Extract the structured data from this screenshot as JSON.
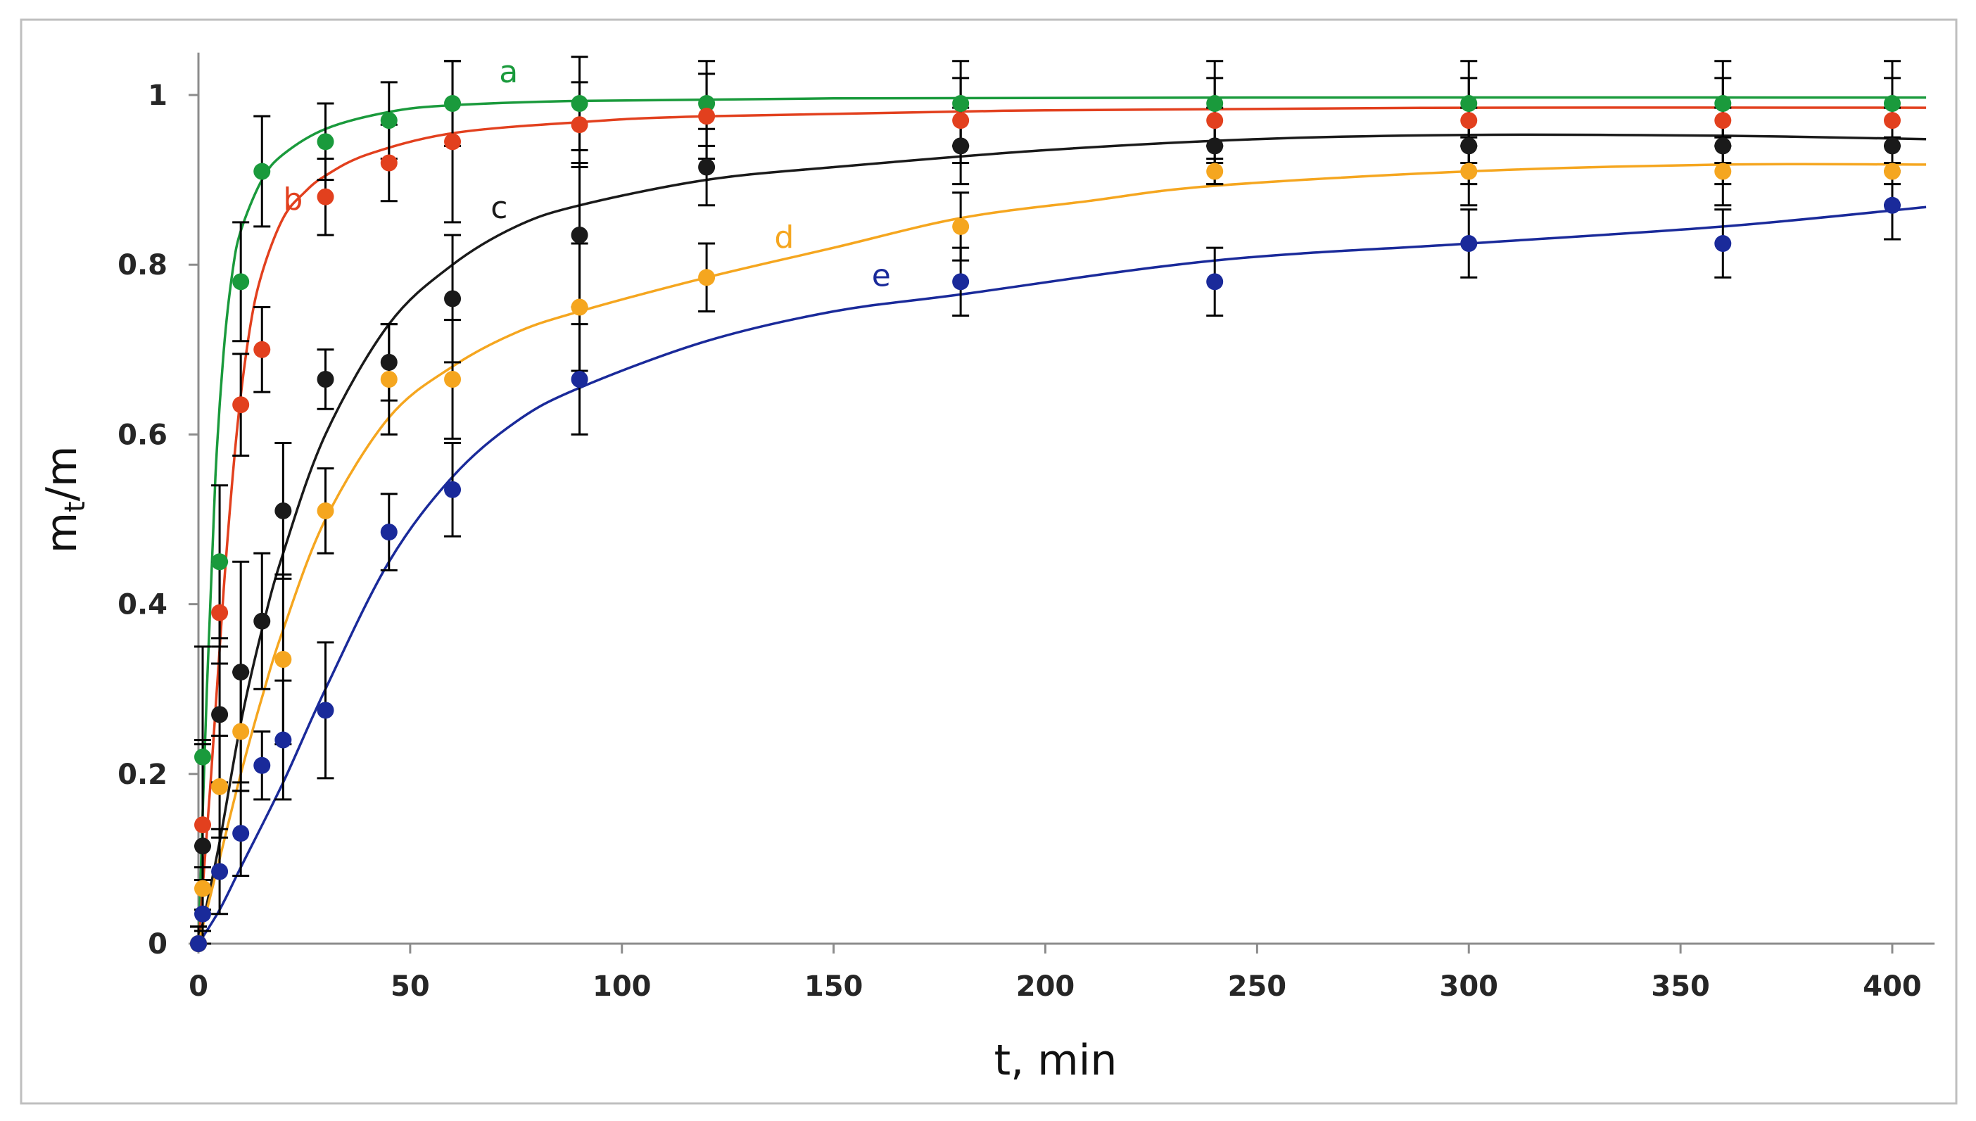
{
  "chart_data": {
    "type": "scatter",
    "title": "",
    "xlabel": "t, min",
    "ylabel_main": "m",
    "ylabel_sub": "t",
    "ylabel_tail": "/m",
    "xlim": [
      0,
      410
    ],
    "ylim": [
      0,
      1.05
    ],
    "grid": false,
    "x_ticks": [
      {
        "value": 0,
        "label": "0"
      },
      {
        "value": 50,
        "label": "50"
      },
      {
        "value": 100,
        "label": "100"
      },
      {
        "value": 150,
        "label": "150"
      },
      {
        "value": 200,
        "label": "200"
      },
      {
        "value": 250,
        "label": "250"
      },
      {
        "value": 300,
        "label": "300"
      },
      {
        "value": 350,
        "label": "350"
      },
      {
        "value": 400,
        "label": "400"
      }
    ],
    "y_ticks": [
      {
        "value": 0,
        "label": "0"
      },
      {
        "value": 0.2,
        "label": "0.2"
      },
      {
        "value": 0.4,
        "label": "0.4"
      },
      {
        "value": 0.6,
        "label": "0.6"
      },
      {
        "value": 0.8,
        "label": "0.8"
      },
      {
        "value": 1,
        "label": "1"
      }
    ],
    "error_bar_color": "#000000",
    "series": [
      {
        "name": "a",
        "color": "#1a9a3c",
        "label_at": [
          71,
          1.015
        ],
        "points": [
          {
            "x": 0,
            "y": 0.0,
            "err": 0.02
          },
          {
            "x": 1,
            "y": 0.22,
            "err": 0.13
          },
          {
            "x": 5,
            "y": 0.45,
            "err": 0.09
          },
          {
            "x": 10,
            "y": 0.78,
            "err": 0.07
          },
          {
            "x": 15,
            "y": 0.91,
            "err": 0.065
          },
          {
            "x": 30,
            "y": 0.945,
            "err": 0.045
          },
          {
            "x": 45,
            "y": 0.97,
            "err": 0.045
          },
          {
            "x": 60,
            "y": 0.99,
            "err": 0.05
          },
          {
            "x": 90,
            "y": 0.99,
            "err": 0.055
          },
          {
            "x": 120,
            "y": 0.99,
            "err": 0.05
          },
          {
            "x": 180,
            "y": 0.99,
            "err": 0.05
          },
          {
            "x": 240,
            "y": 0.99,
            "err": 0.05
          },
          {
            "x": 300,
            "y": 0.99,
            "err": 0.05
          },
          {
            "x": 360,
            "y": 0.99,
            "err": 0.05
          },
          {
            "x": 400,
            "y": 0.99,
            "err": 0.05
          }
        ],
        "fit": [
          [
            0,
            0
          ],
          [
            2,
            0.3
          ],
          [
            4,
            0.55
          ],
          [
            6,
            0.7
          ],
          [
            8,
            0.79
          ],
          [
            10,
            0.84
          ],
          [
            15,
            0.9
          ],
          [
            20,
            0.93
          ],
          [
            30,
            0.96
          ],
          [
            45,
            0.98
          ],
          [
            60,
            0.988
          ],
          [
            90,
            0.993
          ],
          [
            150,
            0.996
          ],
          [
            250,
            0.997
          ],
          [
            408,
            0.997
          ]
        ]
      },
      {
        "name": "b",
        "color": "#e2401e",
        "label_at": [
          20,
          0.865
        ],
        "points": [
          {
            "x": 0,
            "y": 0.0,
            "err": 0.02
          },
          {
            "x": 1,
            "y": 0.14,
            "err": 0.1
          },
          {
            "x": 5,
            "y": 0.39,
            "err": 0.06
          },
          {
            "x": 10,
            "y": 0.635,
            "err": 0.06
          },
          {
            "x": 15,
            "y": 0.7,
            "err": 0.05
          },
          {
            "x": 30,
            "y": 0.88,
            "err": 0.045
          },
          {
            "x": 45,
            "y": 0.92,
            "err": 0.045
          },
          {
            "x": 60,
            "y": 0.945,
            "err": 0.095
          },
          {
            "x": 90,
            "y": 0.965,
            "err": 0.05
          },
          {
            "x": 120,
            "y": 0.975,
            "err": 0.05
          },
          {
            "x": 180,
            "y": 0.97,
            "err": 0.05
          },
          {
            "x": 240,
            "y": 0.97,
            "err": 0.05
          },
          {
            "x": 300,
            "y": 0.97,
            "err": 0.05
          },
          {
            "x": 360,
            "y": 0.97,
            "err": 0.05
          },
          {
            "x": 400,
            "y": 0.97,
            "err": 0.05
          }
        ],
        "fit": [
          [
            0,
            0
          ],
          [
            3,
            0.2
          ],
          [
            6,
            0.42
          ],
          [
            9,
            0.6
          ],
          [
            12,
            0.72
          ],
          [
            15,
            0.79
          ],
          [
            20,
            0.855
          ],
          [
            25,
            0.885
          ],
          [
            30,
            0.905
          ],
          [
            40,
            0.93
          ],
          [
            60,
            0.955
          ],
          [
            90,
            0.968
          ],
          [
            120,
            0.975
          ],
          [
            200,
            0.982
          ],
          [
            300,
            0.985
          ],
          [
            408,
            0.985
          ]
        ]
      },
      {
        "name": "c",
        "color": "#1a1a1a",
        "label_at": [
          69,
          0.855
        ],
        "points": [
          {
            "x": 0,
            "y": 0.0,
            "err": 0.02
          },
          {
            "x": 1,
            "y": 0.115,
            "err": 0.12
          },
          {
            "x": 5,
            "y": 0.27,
            "err": 0.08
          },
          {
            "x": 10,
            "y": 0.32,
            "err": 0.13
          },
          {
            "x": 15,
            "y": 0.38,
            "err": 0.08
          },
          {
            "x": 20,
            "y": 0.51,
            "err": 0.08
          },
          {
            "x": 30,
            "y": 0.665,
            "err": 0.035
          },
          {
            "x": 45,
            "y": 0.685,
            "err": 0.045
          },
          {
            "x": 60,
            "y": 0.76,
            "err": 0.075
          },
          {
            "x": 90,
            "y": 0.835,
            "err": 0.085
          },
          {
            "x": 120,
            "y": 0.915,
            "err": 0.045
          },
          {
            "x": 180,
            "y": 0.94,
            "err": 0.045
          },
          {
            "x": 240,
            "y": 0.94,
            "err": 0.045
          },
          {
            "x": 300,
            "y": 0.94,
            "err": 0.045
          },
          {
            "x": 360,
            "y": 0.94,
            "err": 0.045
          },
          {
            "x": 400,
            "y": 0.94,
            "err": 0.045
          }
        ],
        "fit": [
          [
            0,
            0
          ],
          [
            5,
            0.12
          ],
          [
            10,
            0.26
          ],
          [
            15,
            0.37
          ],
          [
            20,
            0.46
          ],
          [
            30,
            0.6
          ],
          [
            45,
            0.73
          ],
          [
            60,
            0.8
          ],
          [
            75,
            0.845
          ],
          [
            90,
            0.87
          ],
          [
            120,
            0.9
          ],
          [
            150,
            0.915
          ],
          [
            200,
            0.935
          ],
          [
            250,
            0.948
          ],
          [
            300,
            0.953
          ],
          [
            360,
            0.952
          ],
          [
            408,
            0.948
          ]
        ]
      },
      {
        "name": "d",
        "color": "#f5a61f",
        "label_at": [
          136,
          0.82
        ],
        "points": [
          {
            "x": 0,
            "y": 0.0,
            "err": 0.02
          },
          {
            "x": 1,
            "y": 0.065,
            "err": 0.05
          },
          {
            "x": 5,
            "y": 0.185,
            "err": 0.06
          },
          {
            "x": 10,
            "y": 0.25,
            "err": 0.07
          },
          {
            "x": 20,
            "y": 0.335,
            "err": 0.1
          },
          {
            "x": 30,
            "y": 0.51,
            "err": 0.05
          },
          {
            "x": 45,
            "y": 0.665,
            "err": 0.065
          },
          {
            "x": 60,
            "y": 0.665,
            "err": 0.07
          },
          {
            "x": 90,
            "y": 0.75,
            "err": 0.075
          },
          {
            "x": 120,
            "y": 0.785,
            "err": 0.04
          },
          {
            "x": 180,
            "y": 0.845,
            "err": 0.04
          },
          {
            "x": 240,
            "y": 0.91,
            "err": 0.015
          },
          {
            "x": 300,
            "y": 0.91,
            "err": 0.04
          },
          {
            "x": 360,
            "y": 0.91,
            "err": 0.04
          },
          {
            "x": 400,
            "y": 0.91,
            "err": 0.04
          }
        ],
        "fit": [
          [
            0,
            0
          ],
          [
            5,
            0.1
          ],
          [
            10,
            0.2
          ],
          [
            15,
            0.29
          ],
          [
            20,
            0.37
          ],
          [
            30,
            0.5
          ],
          [
            45,
            0.62
          ],
          [
            60,
            0.68
          ],
          [
            75,
            0.72
          ],
          [
            90,
            0.745
          ],
          [
            120,
            0.785
          ],
          [
            150,
            0.82
          ],
          [
            180,
            0.855
          ],
          [
            210,
            0.875
          ],
          [
            240,
            0.893
          ],
          [
            300,
            0.91
          ],
          [
            360,
            0.918
          ],
          [
            408,
            0.918
          ]
        ]
      },
      {
        "name": "e",
        "color": "#1a2a9a",
        "label_at": [
          159,
          0.775
        ],
        "points": [
          {
            "x": 0,
            "y": 0.0,
            "err": 0.02
          },
          {
            "x": 1,
            "y": 0.035,
            "err": 0.04
          },
          {
            "x": 5,
            "y": 0.085,
            "err": 0.05
          },
          {
            "x": 10,
            "y": 0.13,
            "err": 0.05
          },
          {
            "x": 15,
            "y": 0.21,
            "err": 0.04
          },
          {
            "x": 20,
            "y": 0.24,
            "err": 0.07
          },
          {
            "x": 30,
            "y": 0.275,
            "err": 0.08
          },
          {
            "x": 45,
            "y": 0.485,
            "err": 0.045
          },
          {
            "x": 60,
            "y": 0.535,
            "err": 0.055
          },
          {
            "x": 90,
            "y": 0.665,
            "err": 0.065
          },
          {
            "x": 180,
            "y": 0.78,
            "err": 0.04
          },
          {
            "x": 240,
            "y": 0.78,
            "err": 0.04
          },
          {
            "x": 300,
            "y": 0.825,
            "err": 0.04
          },
          {
            "x": 360,
            "y": 0.825,
            "err": 0.04
          },
          {
            "x": 400,
            "y": 0.87,
            "err": 0.04
          }
        ],
        "fit": [
          [
            0,
            0
          ],
          [
            5,
            0.04
          ],
          [
            10,
            0.09
          ],
          [
            20,
            0.19
          ],
          [
            30,
            0.3
          ],
          [
            45,
            0.45
          ],
          [
            60,
            0.55
          ],
          [
            75,
            0.615
          ],
          [
            90,
            0.655
          ],
          [
            120,
            0.71
          ],
          [
            150,
            0.745
          ],
          [
            180,
            0.765
          ],
          [
            240,
            0.805
          ],
          [
            300,
            0.825
          ],
          [
            360,
            0.845
          ],
          [
            408,
            0.868
          ]
        ]
      }
    ]
  }
}
